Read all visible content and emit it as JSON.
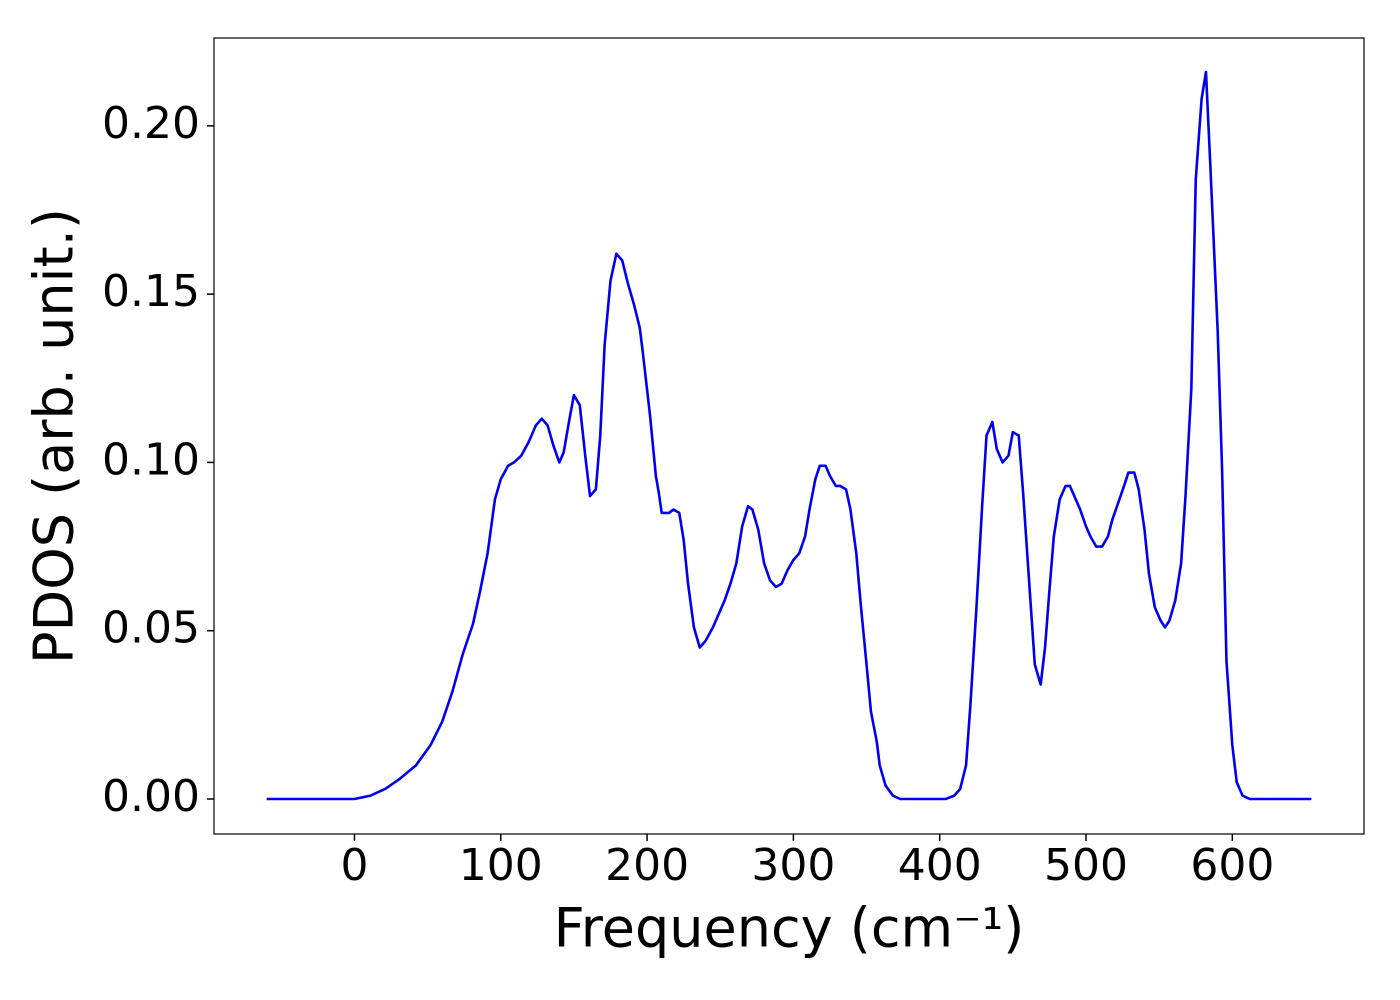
{
  "chart_data": {
    "type": "line",
    "x_label": "Frequency (cm⁻¹)",
    "y_label": "PDOS (arb. unit.)",
    "xlim": [
      -96,
      690
    ],
    "ylim": [
      -0.0104,
      0.2261
    ],
    "xticks": [
      0,
      100,
      200,
      300,
      400,
      500,
      600
    ],
    "yticks": [
      {
        "value": 0,
        "label": "0.00"
      },
      {
        "value": 0.05,
        "label": "0.05"
      },
      {
        "value": 0.1,
        "label": "0.10"
      },
      {
        "value": 0.15,
        "label": "0.15"
      },
      {
        "value": 0.2,
        "label": "0.20"
      }
    ],
    "grid": false,
    "series": [
      {
        "color": "#0000ee",
        "x": [
          -60,
          0,
          11,
          21,
          31,
          42,
          52,
          60,
          67,
          74,
          81,
          86,
          91,
          96,
          100,
          105,
          109,
          114,
          119,
          124,
          128,
          132,
          136,
          140,
          143,
          147,
          150,
          154,
          158,
          161,
          165,
          168,
          171,
          175,
          179,
          183,
          187,
          191,
          195,
          197,
          202,
          206,
          208,
          210,
          215,
          218,
          222,
          225,
          228,
          232,
          236,
          240,
          245,
          249,
          253,
          257,
          261,
          265,
          269,
          272,
          276,
          280,
          284,
          288,
          292,
          296,
          300,
          304,
          308,
          311,
          315,
          318,
          322,
          325,
          329,
          332,
          336,
          339,
          343,
          346,
          350,
          353,
          357,
          359,
          363,
          368,
          373,
          380,
          404,
          410,
          414,
          418,
          421,
          425,
          429,
          432,
          436,
          439,
          443,
          447,
          450,
          454,
          457,
          462,
          465,
          469,
          472,
          475,
          478,
          482,
          486,
          489,
          492,
          496,
          500,
          503,
          507,
          511,
          515,
          518,
          522,
          526,
          529,
          533,
          536,
          540,
          543,
          547,
          551,
          554,
          557,
          561,
          565,
          568,
          572,
          575,
          579,
          582,
          585,
          590,
          593,
          596,
          600,
          603,
          607,
          612,
          654
        ],
        "values": [
          0,
          0,
          0.001,
          0.003,
          0.006,
          0.01,
          0.016,
          0.023,
          0.032,
          0.043,
          0.052,
          0.062,
          0.073,
          0.089,
          0.095,
          0.099,
          0.1,
          0.102,
          0.106,
          0.111,
          0.113,
          0.111,
          0.105,
          0.1,
          0.103,
          0.113,
          0.12,
          0.117,
          0.101,
          0.09,
          0.092,
          0.108,
          0.135,
          0.154,
          0.162,
          0.16,
          0.153,
          0.147,
          0.14,
          0.133,
          0.114,
          0.096,
          0.091,
          0.085,
          0.085,
          0.086,
          0.085,
          0.077,
          0.064,
          0.051,
          0.045,
          0.047,
          0.051,
          0.055,
          0.059,
          0.064,
          0.07,
          0.081,
          0.087,
          0.086,
          0.08,
          0.07,
          0.065,
          0.063,
          0.064,
          0.068,
          0.071,
          0.073,
          0.078,
          0.086,
          0.095,
          0.099,
          0.099,
          0.096,
          0.093,
          0.093,
          0.092,
          0.086,
          0.073,
          0.058,
          0.04,
          0.026,
          0.017,
          0.01,
          0.004,
          0.001,
          0,
          0,
          0,
          0.001,
          0.003,
          0.01,
          0.028,
          0.056,
          0.087,
          0.108,
          0.112,
          0.104,
          0.1,
          0.102,
          0.109,
          0.108,
          0.091,
          0.059,
          0.04,
          0.034,
          0.045,
          0.062,
          0.078,
          0.089,
          0.093,
          0.093,
          0.09,
          0.086,
          0.081,
          0.078,
          0.075,
          0.075,
          0.078,
          0.083,
          0.088,
          0.093,
          0.097,
          0.097,
          0.092,
          0.08,
          0.067,
          0.057,
          0.053,
          0.051,
          0.053,
          0.059,
          0.07,
          0.09,
          0.122,
          0.184,
          0.208,
          0.216,
          0.188,
          0.139,
          0.098,
          0.041,
          0.016,
          0.005,
          0.001,
          0,
          0
        ]
      }
    ]
  }
}
